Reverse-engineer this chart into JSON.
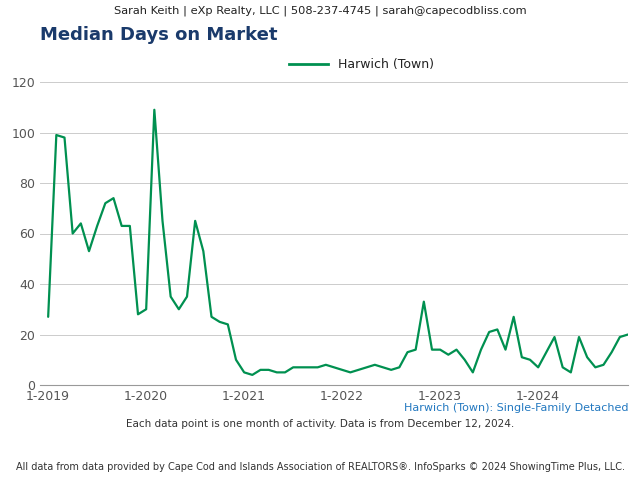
{
  "header": "Sarah Keith | eXp Realty, LLC | 508-237-4745 | sarah@capecodbliss.com",
  "title": "Median Days on Market",
  "legend_label": "Harwich (Town)",
  "subtitle": "Harwich (Town): Single-Family Detached",
  "footnote1": "Each data point is one month of activity. Data is from December 12, 2024.",
  "footnote2": "All data from data provided by Cape Cod and Islands Association of REALTORS®. InfoSparks © 2024 ShowingTime Plus, LLC.",
  "line_color": "#009050",
  "title_color": "#1a3a6b",
  "subtitle_color": "#2278c0",
  "header_bg": "#e8e8e8",
  "plot_bg": "#ffffff",
  "ylim": [
    0,
    120
  ],
  "yticks": [
    0,
    20,
    40,
    60,
    80,
    100,
    120
  ],
  "xtick_labels": [
    "1-2019",
    "1-2020",
    "1-2021",
    "1-2022",
    "1-2023",
    "1-2024"
  ],
  "data": [
    27,
    99,
    98,
    60,
    64,
    53,
    63,
    72,
    74,
    63,
    63,
    28,
    30,
    109,
    65,
    35,
    30,
    35,
    65,
    53,
    27,
    25,
    24,
    10,
    5,
    4,
    6,
    6,
    5,
    5,
    7,
    7,
    7,
    7,
    8,
    7,
    6,
    5,
    6,
    7,
    8,
    7,
    6,
    7,
    13,
    14,
    33,
    14,
    14,
    12,
    14,
    10,
    5,
    14,
    21,
    22,
    14,
    27,
    11,
    10,
    7,
    13,
    19,
    7,
    5,
    19,
    11,
    7,
    8,
    13,
    19,
    20
  ]
}
